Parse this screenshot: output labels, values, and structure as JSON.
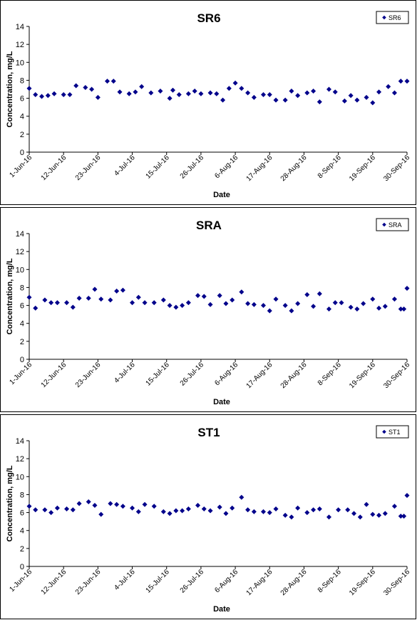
{
  "chart_data": [
    {
      "type": "scatter",
      "title": "SR6",
      "xlabel": "Date",
      "ylabel": "Concentration, mg/L",
      "ylim": [
        0,
        14
      ],
      "yticks": [
        0,
        2,
        4,
        6,
        8,
        10,
        12,
        14
      ],
      "xlim": [
        "2016-06-01",
        "2016-09-30"
      ],
      "xtick_labels": [
        "1-Jun-16",
        "12-Jun-16",
        "23-Jun-16",
        "4-Jul-16",
        "15-Jul-16",
        "26-Jul-16",
        "6-Aug-16",
        "17-Aug-16",
        "28-Aug-16",
        "8-Sep-16",
        "19-Sep-16",
        "30-Sep-16"
      ],
      "grid": false,
      "legend": "top-right",
      "marker_color": "#00008B",
      "series": [
        {
          "name": "SR6",
          "x": [
            "2016-06-01",
            "2016-06-03",
            "2016-06-05",
            "2016-06-07",
            "2016-06-09",
            "2016-06-12",
            "2016-06-14",
            "2016-06-16",
            "2016-06-19",
            "2016-06-21",
            "2016-06-23",
            "2016-06-26",
            "2016-06-28",
            "2016-06-30",
            "2016-07-03",
            "2016-07-05",
            "2016-07-07",
            "2016-07-10",
            "2016-07-13",
            "2016-07-16",
            "2016-07-17",
            "2016-07-19",
            "2016-07-22",
            "2016-07-24",
            "2016-07-26",
            "2016-07-29",
            "2016-07-31",
            "2016-08-02",
            "2016-08-04",
            "2016-08-06",
            "2016-08-08",
            "2016-08-10",
            "2016-08-12",
            "2016-08-15",
            "2016-08-17",
            "2016-08-19",
            "2016-08-22",
            "2016-08-24",
            "2016-08-26",
            "2016-08-29",
            "2016-08-31",
            "2016-09-02",
            "2016-09-05",
            "2016-09-07",
            "2016-09-10",
            "2016-09-12",
            "2016-09-14",
            "2016-09-17",
            "2016-09-19",
            "2016-09-21",
            "2016-09-24",
            "2016-09-26",
            "2016-09-28",
            "2016-09-30"
          ],
          "y": [
            7.1,
            6.4,
            6.2,
            6.3,
            6.5,
            6.4,
            6.4,
            7.4,
            7.2,
            7.0,
            6.1,
            7.9,
            7.9,
            6.7,
            6.5,
            6.7,
            7.3,
            6.6,
            6.8,
            6.0,
            6.9,
            6.4,
            6.5,
            6.8,
            6.5,
            6.6,
            6.5,
            5.8,
            7.1,
            7.7,
            7.1,
            6.6,
            6.1,
            6.4,
            6.4,
            5.8,
            5.8,
            6.8,
            6.3,
            6.6,
            6.8,
            5.6,
            7.0,
            6.7,
            5.7,
            6.3,
            5.8,
            6.1,
            5.5,
            6.7,
            7.3,
            6.6,
            7.9,
            7.9
          ]
        }
      ]
    },
    {
      "type": "scatter",
      "title": "SRA",
      "xlabel": "Date",
      "ylabel": "Concentration, mg/L",
      "ylim": [
        0,
        14
      ],
      "yticks": [
        0,
        2,
        4,
        6,
        8,
        10,
        12,
        14
      ],
      "xlim": [
        "2016-06-01",
        "2016-09-30"
      ],
      "xtick_labels": [
        "1-Jun-16",
        "12-Jun-16",
        "23-Jun-16",
        "4-Jul-16",
        "15-Jul-16",
        "26-Jul-16",
        "6-Aug-16",
        "17-Aug-16",
        "28-Aug-16",
        "8-Sep-16",
        "19-Sep-16",
        "30-Sep-16"
      ],
      "grid": false,
      "legend": "top-right",
      "marker_color": "#00008B",
      "series": [
        {
          "name": "SRA",
          "x": [
            "2016-06-01",
            "2016-06-03",
            "2016-06-06",
            "2016-06-08",
            "2016-06-10",
            "2016-06-13",
            "2016-06-15",
            "2016-06-17",
            "2016-06-20",
            "2016-06-22",
            "2016-06-24",
            "2016-06-27",
            "2016-06-29",
            "2016-07-01",
            "2016-07-04",
            "2016-07-06",
            "2016-07-08",
            "2016-07-11",
            "2016-07-14",
            "2016-07-16",
            "2016-07-18",
            "2016-07-20",
            "2016-07-22",
            "2016-07-25",
            "2016-07-27",
            "2016-07-29",
            "2016-08-01",
            "2016-08-03",
            "2016-08-05",
            "2016-08-08",
            "2016-08-10",
            "2016-08-12",
            "2016-08-15",
            "2016-08-17",
            "2016-08-19",
            "2016-08-22",
            "2016-08-24",
            "2016-08-26",
            "2016-08-29",
            "2016-08-31",
            "2016-09-02",
            "2016-09-05",
            "2016-09-07",
            "2016-09-09",
            "2016-09-12",
            "2016-09-14",
            "2016-09-16",
            "2016-09-19",
            "2016-09-21",
            "2016-09-23",
            "2016-09-26",
            "2016-09-28",
            "2016-09-29",
            "2016-09-30"
          ],
          "y": [
            6.9,
            5.7,
            6.6,
            6.3,
            6.3,
            6.3,
            5.8,
            6.8,
            6.8,
            7.8,
            6.7,
            6.6,
            7.6,
            7.7,
            6.3,
            6.9,
            6.3,
            6.3,
            6.6,
            6.0,
            5.8,
            6.0,
            6.3,
            7.1,
            7.0,
            6.1,
            7.1,
            6.2,
            6.6,
            7.5,
            6.2,
            6.1,
            6.0,
            5.4,
            6.7,
            6.0,
            5.4,
            6.2,
            7.2,
            5.9,
            7.3,
            5.6,
            6.3,
            6.3,
            5.8,
            5.6,
            6.2,
            6.7,
            5.7,
            5.9,
            6.7,
            5.6,
            5.6,
            7.9
          ]
        }
      ]
    },
    {
      "type": "scatter",
      "title": "ST1",
      "xlabel": "Date",
      "ylabel": "Concentration, mg/L",
      "ylim": [
        0,
        14
      ],
      "yticks": [
        0,
        2,
        4,
        6,
        8,
        10,
        12,
        14
      ],
      "xlim": [
        "2016-06-01",
        "2016-09-30"
      ],
      "xtick_labels": [
        "1-Jun-16",
        "12-Jun-16",
        "23-Jun-16",
        "4-Jul-16",
        "15-Jul-16",
        "26-Jul-16",
        "6-Aug-16",
        "17-Aug-16",
        "28-Aug-16",
        "8-Sep-16",
        "19-Sep-16",
        "30-Sep-16"
      ],
      "grid": false,
      "legend": "top-right",
      "marker_color": "#00008B",
      "series": [
        {
          "name": "ST1",
          "x": [
            "2016-06-01",
            "2016-06-03",
            "2016-06-06",
            "2016-06-08",
            "2016-06-10",
            "2016-06-13",
            "2016-06-15",
            "2016-06-17",
            "2016-06-20",
            "2016-06-22",
            "2016-06-24",
            "2016-06-27",
            "2016-06-29",
            "2016-07-01",
            "2016-07-04",
            "2016-07-06",
            "2016-07-08",
            "2016-07-11",
            "2016-07-14",
            "2016-07-16",
            "2016-07-18",
            "2016-07-20",
            "2016-07-22",
            "2016-07-25",
            "2016-07-27",
            "2016-07-29",
            "2016-08-01",
            "2016-08-03",
            "2016-08-05",
            "2016-08-08",
            "2016-08-10",
            "2016-08-12",
            "2016-08-15",
            "2016-08-17",
            "2016-08-19",
            "2016-08-22",
            "2016-08-24",
            "2016-08-26",
            "2016-08-29",
            "2016-08-31",
            "2016-09-02",
            "2016-09-05",
            "2016-09-08",
            "2016-09-11",
            "2016-09-13",
            "2016-09-15",
            "2016-09-17",
            "2016-09-19",
            "2016-09-21",
            "2016-09-23",
            "2016-09-26",
            "2016-09-28",
            "2016-09-29",
            "2016-09-30"
          ],
          "y": [
            6.7,
            6.3,
            6.3,
            6.0,
            6.5,
            6.4,
            6.3,
            7.0,
            7.2,
            6.8,
            5.8,
            7.0,
            6.9,
            6.7,
            6.5,
            6.1,
            6.9,
            6.7,
            6.1,
            5.9,
            6.2,
            6.2,
            6.4,
            6.8,
            6.4,
            6.2,
            6.6,
            5.9,
            6.5,
            7.7,
            6.3,
            6.1,
            6.1,
            6.0,
            6.4,
            5.7,
            5.5,
            6.5,
            6.0,
            6.3,
            6.4,
            5.5,
            6.3,
            6.3,
            5.9,
            5.5,
            6.9,
            5.8,
            5.7,
            5.9,
            6.7,
            5.6,
            5.6,
            7.9
          ]
        }
      ]
    }
  ]
}
